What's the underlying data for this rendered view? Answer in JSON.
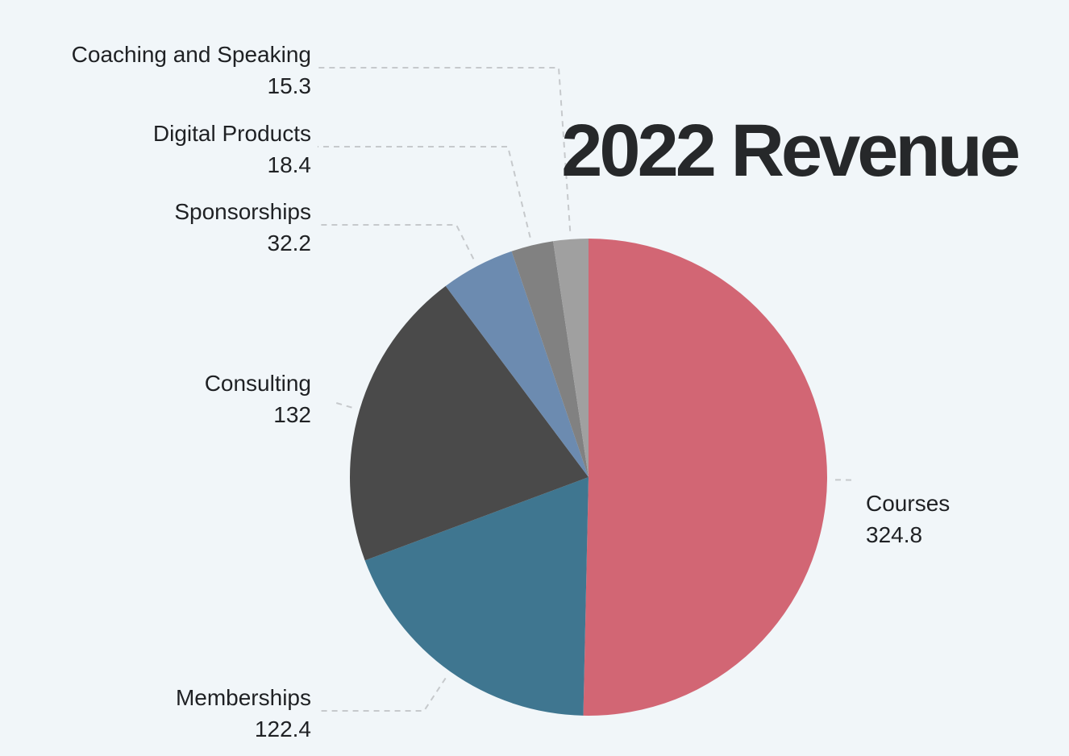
{
  "chart_data": {
    "type": "pie",
    "title": "2022 Revenue",
    "start_angle_deg": 0,
    "direction": "clockwise",
    "slices": [
      {
        "label": "Courses",
        "value": 324.8,
        "color": "#d26674",
        "label_side": "right"
      },
      {
        "label": "Memberships",
        "value": 122.4,
        "color": "#3f7690",
        "label_side": "left"
      },
      {
        "label": "Consulting",
        "value": 132,
        "color": "#4a4a4a",
        "label_side": "left"
      },
      {
        "label": "Sponsorships",
        "value": 32.2,
        "color": "#6c8bb0",
        "label_side": "left"
      },
      {
        "label": "Digital Products",
        "value": 18.4,
        "color": "#818181",
        "label_side": "left"
      },
      {
        "label": "Coaching and Speaking",
        "value": 15.3,
        "color": "#a0a0a0",
        "label_side": "left"
      }
    ],
    "leader_color": "#c6c9cc",
    "background": "#f1f6f9"
  }
}
